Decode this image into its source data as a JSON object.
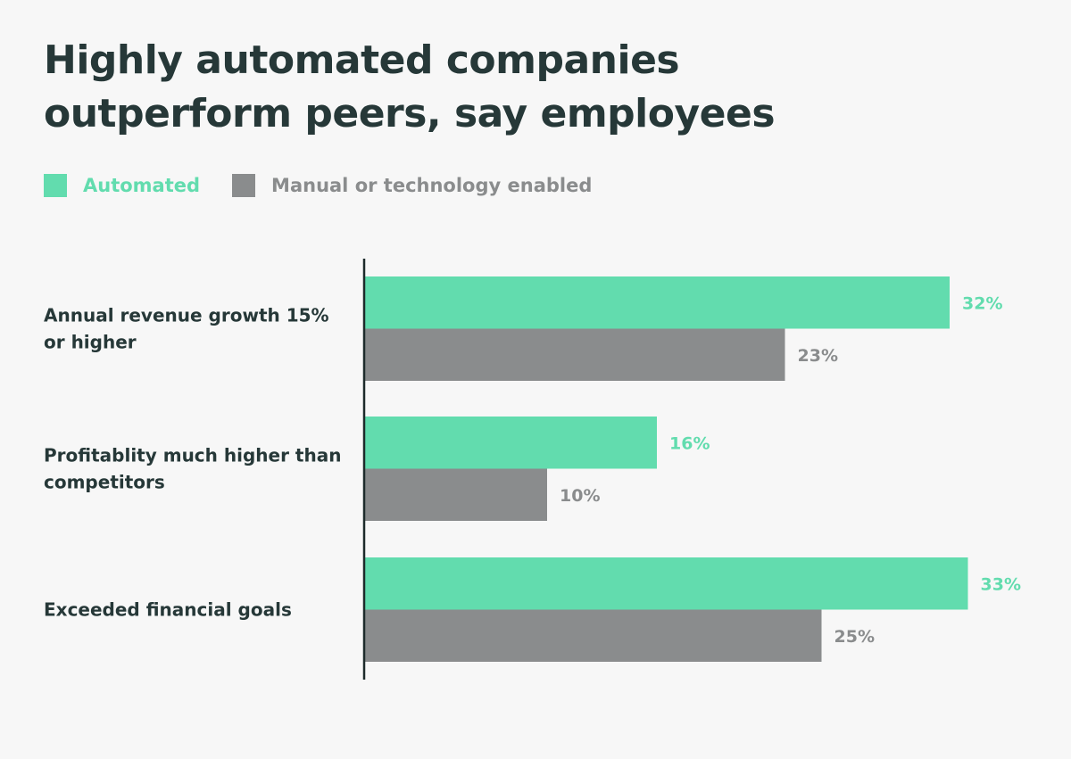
{
  "title": "Highly automated companies outperform peers, say employees",
  "legend": [
    {
      "label": "Automated",
      "color": "#62dcae"
    },
    {
      "label": "Manual or technology enabled",
      "color": "#8a8c8d"
    }
  ],
  "chart_data": {
    "type": "bar",
    "orientation": "horizontal",
    "title": "Highly automated companies outperform peers, say employees",
    "categories": [
      [
        "Annual revenue growth 15%",
        "or higher"
      ],
      [
        "Profitablity much higher than",
        "competitors"
      ],
      [
        "Exceeded financial goals"
      ]
    ],
    "series": [
      {
        "name": "Automated",
        "color": "#62dcae",
        "values": [
          32,
          16,
          33
        ],
        "labels": [
          "32%",
          "16%",
          "33%"
        ]
      },
      {
        "name": "Manual or technology enabled",
        "color": "#8a8c8d",
        "values": [
          23,
          10,
          25
        ],
        "labels": [
          "23%",
          "10%",
          "25%"
        ]
      }
    ],
    "value_suffix": "%",
    "legend_position": "top-left",
    "grid": false,
    "x_axis_visible": false
  }
}
